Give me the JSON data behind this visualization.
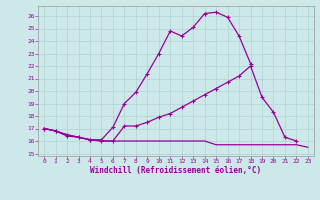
{
  "background_color": "#cce8e8",
  "line_color": "#990099",
  "grid_color": "#aacccc",
  "xlim": [
    -0.5,
    23.5
  ],
  "ylim": [
    14.8,
    26.8
  ],
  "yticks": [
    15,
    16,
    17,
    18,
    19,
    20,
    21,
    22,
    23,
    24,
    25,
    26
  ],
  "xticks": [
    0,
    1,
    2,
    3,
    4,
    5,
    6,
    7,
    8,
    9,
    10,
    11,
    12,
    13,
    14,
    15,
    16,
    17,
    18,
    19,
    20,
    21,
    22,
    23
  ],
  "xlabel": "Windchill (Refroidissement éolien,°C)",
  "xlabel_fontsize": 5.5,
  "tick_fontsize": 4.5,
  "series": [
    {
      "x": [
        0,
        1,
        2,
        3,
        4,
        5,
        6,
        7,
        8,
        9,
        10,
        11,
        12,
        13,
        14,
        15,
        16,
        17,
        18
      ],
      "y": [
        17.0,
        16.8,
        16.4,
        16.3,
        16.1,
        16.1,
        17.1,
        19.0,
        19.9,
        21.4,
        23.0,
        24.8,
        24.4,
        25.1,
        26.2,
        26.3,
        25.9,
        24.4,
        22.2
      ],
      "marker": "+",
      "lw": 0.9
    },
    {
      "x": [
        0,
        1,
        2,
        3,
        4,
        5,
        6,
        7,
        8,
        9,
        10,
        11,
        12,
        13,
        14,
        15,
        16,
        17,
        18,
        19,
        20,
        21,
        22
      ],
      "y": [
        17.0,
        16.8,
        16.5,
        16.3,
        16.1,
        16.0,
        16.0,
        17.2,
        17.2,
        17.5,
        17.9,
        18.2,
        18.7,
        19.2,
        19.7,
        20.2,
        20.7,
        21.2,
        22.0,
        19.5,
        18.3,
        16.3,
        16.0
      ],
      "marker": "+",
      "lw": 0.9
    },
    {
      "x": [
        0,
        1,
        2,
        3,
        4,
        5,
        6,
        7,
        8,
        9,
        10,
        11,
        12,
        13,
        14,
        15,
        16,
        17,
        18,
        19,
        20,
        21,
        22,
        23
      ],
      "y": [
        17.0,
        16.8,
        16.5,
        16.3,
        16.1,
        16.0,
        16.0,
        16.0,
        16.0,
        16.0,
        16.0,
        16.0,
        16.0,
        16.0,
        16.0,
        15.7,
        15.7,
        15.7,
        15.7,
        15.7,
        15.7,
        15.7,
        15.7,
        15.5
      ],
      "marker": null,
      "lw": 0.9
    }
  ]
}
